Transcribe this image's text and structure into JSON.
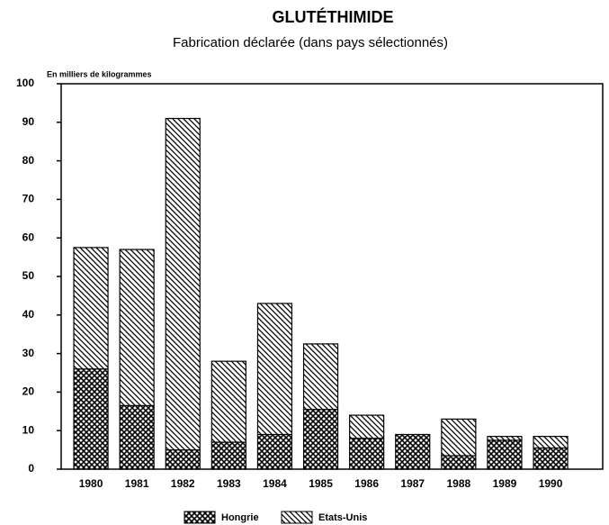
{
  "chart_data": {
    "type": "stacked_bar",
    "title": "GLUTÉTHIMIDE",
    "subtitle": "Fabrication déclarée (dans pays sélectionnés)",
    "y_label": "En milliers de kilogrammes",
    "categories": [
      "1980",
      "1981",
      "1982",
      "1983",
      "1984",
      "1985",
      "1986",
      "1987",
      "1988",
      "1989",
      "1990"
    ],
    "series": [
      {
        "name": "Hongrie",
        "color": "#000000",
        "pattern": "crosshatch",
        "values": [
          26,
          16.5,
          5,
          7,
          9,
          15.5,
          8,
          9,
          3.5,
          7.5,
          5.5
        ]
      },
      {
        "name": "Etats-Unis",
        "color": "#000000",
        "pattern": "diagonal",
        "values": [
          31.5,
          40.5,
          86,
          21,
          34,
          17,
          6,
          0,
          9.5,
          1,
          3
        ]
      }
    ],
    "ylim": [
      0,
      100
    ],
    "yticks": [
      0,
      10,
      20,
      30,
      40,
      50,
      60,
      70,
      80,
      90,
      100
    ]
  }
}
